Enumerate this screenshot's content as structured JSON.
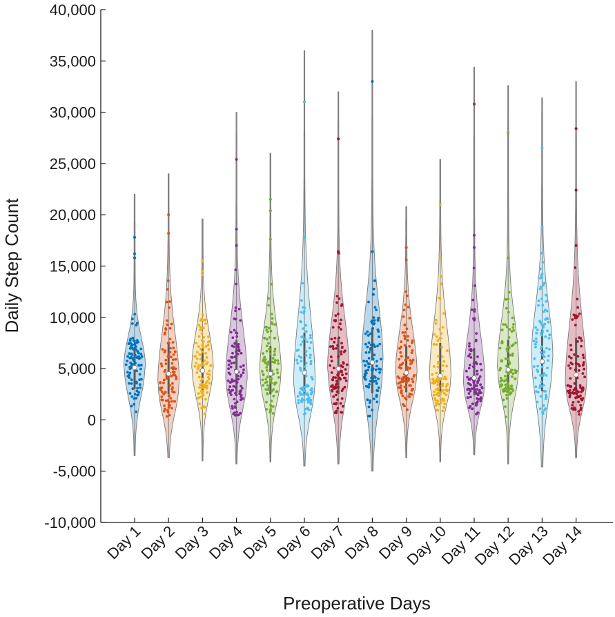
{
  "chart_data": {
    "type": "violin",
    "title": "",
    "xlabel": "Preoperative Days",
    "ylabel": "Daily Step Count",
    "ylim": [
      -10000,
      40000
    ],
    "yticks": [
      -10000,
      -5000,
      0,
      5000,
      10000,
      15000,
      20000,
      25000,
      30000,
      35000,
      40000
    ],
    "ytick_labels": [
      "-10,000",
      "-5,000",
      "0",
      "5,000",
      "10,000",
      "15,000",
      "20,000",
      "25,000",
      "30,000",
      "35,000",
      "40,000"
    ],
    "grid": false,
    "categories": [
      "Day 1",
      "Day 2",
      "Day 3",
      "Day 4",
      "Day 5",
      "Day 6",
      "Day 7",
      "Day 8",
      "Day 9",
      "Day 10",
      "Day 11",
      "Day 12",
      "Day 13",
      "Day 14"
    ],
    "series": [
      {
        "name": "Day 1",
        "color": "#0072BD",
        "median": 5100,
        "q1": 3000,
        "q3": 6800,
        "whisker_low": -3500,
        "whisker_high": 22000,
        "mode": 5200,
        "outliers": [
          17800,
          16200,
          15800
        ]
      },
      {
        "name": "Day 2",
        "color": "#D95319",
        "median": 4500,
        "q1": 2500,
        "q3": 7500,
        "whisker_low": -3700,
        "whisker_high": 24000,
        "mode": 3500,
        "outliers": [
          20000,
          18200
        ]
      },
      {
        "name": "Day 3",
        "color": "#EDB120",
        "median": 4800,
        "q1": 2800,
        "q3": 7000,
        "whisker_low": -4000,
        "whisker_high": 19600,
        "mode": 5000,
        "outliers": [
          15500,
          14500
        ]
      },
      {
        "name": "Day 4",
        "color": "#7E2F8E",
        "median": 4700,
        "q1": 2600,
        "q3": 7800,
        "whisker_low": -4300,
        "whisker_high": 30000,
        "mode": 4000,
        "outliers": [
          25400,
          18600,
          17000
        ]
      },
      {
        "name": "Day 5",
        "color": "#77AC30",
        "median": 4500,
        "q1": 2500,
        "q3": 7200,
        "whisker_low": -4100,
        "whisker_high": 26000,
        "mode": 4500,
        "outliers": [
          21500,
          20400,
          17600
        ]
      },
      {
        "name": "Day 6",
        "color": "#4DBEEE",
        "median": 4600,
        "q1": 2500,
        "q3": 8500,
        "whisker_low": -4500,
        "whisker_high": 36000,
        "mode": 3500,
        "outliers": [
          31000,
          17800
        ]
      },
      {
        "name": "Day 7",
        "color": "#A2142F",
        "median": 5000,
        "q1": 2500,
        "q3": 8000,
        "whisker_low": -4300,
        "whisker_high": 32000,
        "mode": 5000,
        "outliers": [
          27400,
          16400
        ]
      },
      {
        "name": "Day 8",
        "color": "#0072BD",
        "median": 5600,
        "q1": 2600,
        "q3": 9000,
        "whisker_low": -5000,
        "whisker_high": 38000,
        "mode": 5500,
        "outliers": [
          33000,
          16400
        ]
      },
      {
        "name": "Day 9",
        "color": "#D95319",
        "median": 4600,
        "q1": 2700,
        "q3": 7200,
        "whisker_low": -3700,
        "whisker_high": 20800,
        "mode": 4500,
        "outliers": [
          16800,
          15600
        ]
      },
      {
        "name": "Day 10",
        "color": "#EDB120",
        "median": 4300,
        "q1": 2500,
        "q3": 7500,
        "whisker_low": -4100,
        "whisker_high": 25400,
        "mode": 4000,
        "outliers": [
          21000,
          15800
        ]
      },
      {
        "name": "Day 11",
        "color": "#7E2F8E",
        "median": 4100,
        "q1": 2400,
        "q3": 7000,
        "whisker_low": -3400,
        "whisker_high": 34400,
        "mode": 3500,
        "outliers": [
          30800,
          18000,
          16800
        ]
      },
      {
        "name": "Day 12",
        "color": "#77AC30",
        "median": 4900,
        "q1": 2800,
        "q3": 7800,
        "whisker_low": -4300,
        "whisker_high": 32600,
        "mode": 5000,
        "outliers": [
          28000,
          15800
        ]
      },
      {
        "name": "Day 13",
        "color": "#4DBEEE",
        "median": 5700,
        "q1": 2800,
        "q3": 8800,
        "whisker_low": -4600,
        "whisker_high": 31400,
        "mode": 6000,
        "outliers": [
          26500,
          18800
        ]
      },
      {
        "name": "Day 14",
        "color": "#A2142F",
        "median": 4400,
        "q1": 2600,
        "q3": 8000,
        "whisker_low": -3700,
        "whisker_high": 33000,
        "mode": 3500,
        "outliers": [
          28400,
          22400,
          17000
        ]
      }
    ]
  }
}
